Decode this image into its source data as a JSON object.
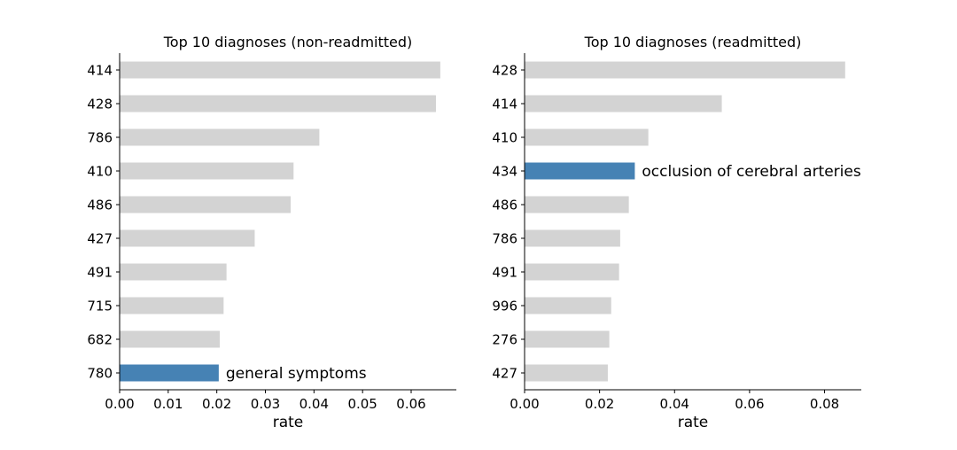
{
  "chart_data": [
    {
      "type": "bar",
      "orientation": "horizontal",
      "title": "Top 10 diagnoses (non-readmitted)",
      "xlabel": "rate",
      "ylabel": "",
      "categories": [
        "414",
        "428",
        "786",
        "410",
        "486",
        "427",
        "491",
        "715",
        "682",
        "780"
      ],
      "values": [
        0.066,
        0.0651,
        0.0411,
        0.0358,
        0.0352,
        0.0278,
        0.022,
        0.0214,
        0.0206,
        0.0204
      ],
      "xlim": [
        0,
        0.0693
      ],
      "xticks": [
        "0.00",
        "0.01",
        "0.02",
        "0.03",
        "0.04",
        "0.05",
        "0.06"
      ],
      "highlight": {
        "category": "780",
        "label": "general symptoms"
      },
      "grid": false
    },
    {
      "type": "bar",
      "orientation": "horizontal",
      "title": "Top 10 diagnoses (readmitted)",
      "xlabel": "rate",
      "ylabel": "",
      "categories": [
        "428",
        "414",
        "410",
        "434",
        "486",
        "786",
        "491",
        "996",
        "276",
        "427"
      ],
      "values": [
        0.0855,
        0.0526,
        0.033,
        0.0294,
        0.0278,
        0.0255,
        0.0252,
        0.0231,
        0.0226,
        0.0222
      ],
      "xlim": [
        0,
        0.0898
      ],
      "xticks": [
        "0.00",
        "0.02",
        "0.04",
        "0.06",
        "0.08"
      ],
      "highlight": {
        "category": "434",
        "label": "occlusion of cerebral arteries"
      },
      "grid": false
    }
  ],
  "colors": {
    "bar": "#d3d3d3",
    "highlight": "#4682b4",
    "axis": "#000000"
  }
}
